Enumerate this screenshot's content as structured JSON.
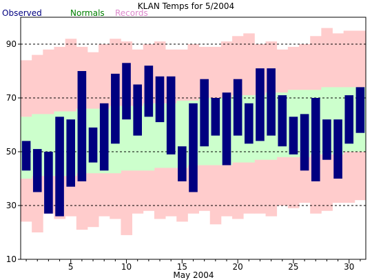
{
  "chart_data": {
    "type": "bar",
    "title": "KLAN Temps for 5/2004",
    "xlabel": "May 2004",
    "ylabel": "",
    "xlim": [
      0.5,
      31.5
    ],
    "ylim": [
      10,
      100
    ],
    "yticks": [
      10,
      30,
      50,
      70,
      90
    ],
    "xticks": [
      5,
      10,
      15,
      20,
      25,
      30
    ],
    "dashed_gridlines_y": [
      30,
      50,
      70,
      90
    ],
    "legend": [
      {
        "label": "Observed",
        "color": "#000080"
      },
      {
        "label": "Normals",
        "color": "#008000"
      },
      {
        "label": "Records",
        "color": "#dd88cc"
      }
    ],
    "legend_position": "top-left",
    "days": [
      1,
      2,
      3,
      4,
      5,
      6,
      7,
      8,
      9,
      10,
      11,
      12,
      13,
      14,
      15,
      16,
      17,
      18,
      19,
      20,
      21,
      22,
      23,
      24,
      25,
      26,
      27,
      28,
      29,
      30,
      31
    ],
    "series": [
      {
        "name": "Observed",
        "color": "#000080",
        "high": [
          54,
          51,
          50,
          63,
          62,
          80,
          59,
          68,
          79,
          83,
          75,
          82,
          78,
          78,
          52,
          68,
          77,
          70,
          72,
          77,
          68,
          81,
          81,
          71,
          63,
          64,
          70,
          62,
          62,
          71,
          74
        ],
        "low": [
          43,
          35,
          27,
          26,
          37,
          39,
          46,
          43,
          53,
          62,
          56,
          63,
          61,
          49,
          39,
          35,
          52,
          56,
          45,
          56,
          53,
          54,
          56,
          52,
          49,
          43,
          39,
          47,
          40,
          53,
          57
        ]
      },
      {
        "name": "Normals",
        "color": "#ccffcc",
        "high": [
          63,
          64,
          64,
          65,
          65,
          66,
          66,
          66,
          67,
          67,
          67,
          68,
          68,
          68,
          69,
          69,
          70,
          70,
          70,
          71,
          71,
          71,
          72,
          72,
          73,
          73,
          73,
          74,
          74,
          74,
          74
        ],
        "low": [
          40,
          41,
          41,
          41,
          41,
          42,
          42,
          42,
          42,
          43,
          43,
          43,
          44,
          44,
          44,
          45,
          45,
          45,
          45,
          46,
          46,
          47,
          47,
          48,
          48,
          48,
          49,
          49,
          49,
          50,
          50
        ]
      },
      {
        "name": "Records",
        "color": "#ffcccc",
        "high": [
          84,
          86,
          88,
          89,
          92,
          89,
          87,
          90,
          92,
          91,
          88,
          90,
          91,
          88,
          88,
          90,
          89,
          89,
          91,
          93,
          94,
          90,
          91,
          88,
          89,
          90,
          93,
          96,
          94,
          95,
          95
        ],
        "low": [
          24,
          20,
          27,
          25,
          26,
          21,
          22,
          26,
          25,
          19,
          27,
          28,
          25,
          26,
          24,
          27,
          28,
          23,
          26,
          25,
          27,
          27,
          26,
          30,
          29,
          31,
          27,
          28,
          31,
          31,
          32
        ]
      }
    ],
    "colors": {
      "background": "#ffffff",
      "frame": "#000000",
      "gridline": "#000000"
    }
  }
}
